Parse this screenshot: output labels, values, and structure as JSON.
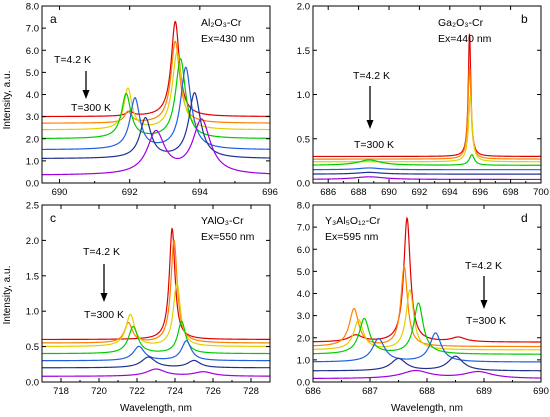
{
  "axis_labels": {
    "y": "Intensity, a.u.",
    "x": "Wavelength, nm"
  },
  "colors": {
    "series": [
      "#e00000",
      "#ff8000",
      "#e0d000",
      "#00cc00",
      "#2060e0",
      "#203090",
      "#a000e0"
    ],
    "label_high": "#e00000",
    "label_low": "#a000e0"
  },
  "chart_data": [
    {
      "type": "line",
      "panel": "a",
      "material": "Al₂O₃-Cr",
      "excitation": "Ex=430 nm",
      "label_high": "T=4.2 K",
      "label_low": "T=300 K",
      "xlim": [
        689.5,
        696
      ],
      "ylim": [
        0,
        8
      ],
      "xticks": [
        690,
        692,
        694,
        696
      ],
      "xtick_labels": [
        "690",
        "692",
        "694",
        "696"
      ],
      "yticks": [
        0,
        1,
        2,
        3,
        4,
        5,
        6,
        7,
        8
      ],
      "ytick_labels": [
        "0.0",
        "1.0",
        "2.0",
        "3.0",
        "4.0",
        "5.0",
        "6.0",
        "7.0",
        "8.0"
      ],
      "series": [
        {
          "baseline": 3.0,
          "peaks": [
            [
              692.0,
              0.2,
              0.12
            ],
            [
              693.3,
              4.3,
              0.14
            ]
          ]
        },
        {
          "baseline": 2.7,
          "peaks": [
            [
              691.95,
              0.5,
              0.12
            ],
            [
              693.3,
              3.7,
              0.15
            ]
          ]
        },
        {
          "baseline": 2.4,
          "peaks": [
            [
              691.95,
              1.85,
              0.14
            ],
            [
              693.35,
              3.5,
              0.16
            ]
          ]
        },
        {
          "baseline": 2.0,
          "peaks": [
            [
              691.9,
              2.0,
              0.16
            ],
            [
              693.45,
              3.6,
              0.17
            ]
          ]
        },
        {
          "baseline": 1.5,
          "peaks": [
            [
              692.15,
              2.3,
              0.17
            ],
            [
              693.6,
              3.7,
              0.18
            ]
          ]
        },
        {
          "baseline": 1.1,
          "peaks": [
            [
              692.45,
              1.8,
              0.19
            ],
            [
              693.85,
              2.95,
              0.2
            ]
          ]
        },
        {
          "baseline": 0.35,
          "peaks": [
            [
              692.75,
              1.9,
              0.3
            ],
            [
              694.05,
              2.45,
              0.3
            ]
          ]
        }
      ]
    },
    {
      "type": "line",
      "panel": "b",
      "material": "Ga₂O₃-Cr",
      "excitation": "Ex=440 nm",
      "label_high": "T=4.2 K",
      "label_low": "T=300 K",
      "xlim": [
        685,
        700
      ],
      "ylim": [
        0,
        2.0
      ],
      "xticks": [
        686,
        688,
        690,
        692,
        694,
        696,
        698,
        700
      ],
      "xtick_labels": [
        "686",
        "688",
        "690",
        "692",
        "694",
        "696",
        "698",
        "700"
      ],
      "yticks": [
        0,
        0.5,
        1.0,
        1.5,
        2.0
      ],
      "ytick_labels": [
        "0.0",
        "0.5",
        "1.0",
        "1.5",
        "2.0"
      ],
      "series": [
        {
          "baseline": 0.3,
          "peaks": [
            [
              695.3,
              1.4,
              0.1
            ]
          ]
        },
        {
          "baseline": 0.27,
          "peaks": [
            [
              695.3,
              1.05,
              0.12
            ]
          ]
        },
        {
          "baseline": 0.24,
          "peaks": [
            [
              695.35,
              0.75,
              0.14
            ]
          ]
        },
        {
          "baseline": 0.2,
          "peaks": [
            [
              688.7,
              0.06,
              0.9
            ],
            [
              695.45,
              0.12,
              0.2
            ]
          ]
        },
        {
          "baseline": 0.15,
          "peaks": [
            [
              688.7,
              0.02,
              0.9
            ]
          ]
        },
        {
          "baseline": 0.1,
          "peaks": [
            [
              688.7,
              0.02,
              1.0
            ]
          ]
        },
        {
          "baseline": 0.04,
          "peaks": [
            [
              688.7,
              0.03,
              1.2
            ]
          ]
        }
      ]
    },
    {
      "type": "line",
      "panel": "c",
      "material": "YAlO₃-Cr",
      "excitation": "Ex=550 nm",
      "label_high": "T=4.2 K",
      "label_low": "T=300 K",
      "xlim": [
        717,
        729
      ],
      "ylim": [
        0,
        2.5
      ],
      "xticks": [
        718,
        720,
        722,
        724,
        726,
        728
      ],
      "xtick_labels": [
        "718",
        "720",
        "722",
        "724",
        "726",
        "728"
      ],
      "yticks": [
        0,
        0.5,
        1.0,
        1.5,
        2.0,
        2.5
      ],
      "ytick_labels": [
        "0.0",
        "0.5",
        "1.0",
        "1.5",
        "2.0",
        "2.5"
      ],
      "series": [
        {
          "baseline": 0.6,
          "peaks": [
            [
              723.85,
              1.57,
              0.18
            ]
          ]
        },
        {
          "baseline": 0.55,
          "peaks": [
            [
              721.55,
              0.28,
              0.25
            ],
            [
              723.95,
              1.45,
              0.2
            ]
          ]
        },
        {
          "baseline": 0.5,
          "peaks": [
            [
              721.65,
              0.45,
              0.28
            ],
            [
              724.1,
              0.9,
              0.22
            ]
          ]
        },
        {
          "baseline": 0.4,
          "peaks": [
            [
              721.8,
              0.38,
              0.3
            ],
            [
              724.35,
              0.45,
              0.25
            ]
          ]
        },
        {
          "baseline": 0.3,
          "peaks": [
            [
              722.1,
              0.2,
              0.35
            ],
            [
              724.6,
              0.28,
              0.3
            ]
          ]
        },
        {
          "baseline": 0.2,
          "peaks": [
            [
              722.6,
              0.15,
              0.45
            ],
            [
              725.0,
              0.1,
              0.4
            ]
          ]
        },
        {
          "baseline": 0.08,
          "peaks": [
            [
              723.0,
              0.1,
              0.6
            ],
            [
              725.5,
              0.06,
              0.6
            ]
          ]
        }
      ]
    },
    {
      "type": "line",
      "panel": "d",
      "material": "Y₃Al₅O₁₂-Cr",
      "excitation": "Ex=595 nm",
      "label_high": "T=4.2 K",
      "label_low": "T=300 K",
      "xlim": [
        686,
        690
      ],
      "ylim": [
        0,
        8.0
      ],
      "xticks": [
        686,
        687,
        688,
        689,
        690
      ],
      "xtick_labels": [
        "686",
        "687",
        "688",
        "689",
        "690"
      ],
      "yticks": [
        0,
        1,
        2,
        3,
        4,
        5,
        6,
        7,
        8
      ],
      "ytick_labels": [
        "0.0",
        "1.0",
        "2.0",
        "3.0",
        "4.0",
        "5.0",
        "6.0",
        "7.0",
        "8.0"
      ],
      "series": [
        {
          "baseline": 1.8,
          "peaks": [
            [
              686.75,
              0.3,
              0.15
            ],
            [
              687.65,
              5.6,
              0.07
            ],
            [
              688.55,
              0.2,
              0.15
            ]
          ]
        },
        {
          "baseline": 1.6,
          "peaks": [
            [
              686.72,
              1.7,
              0.1
            ],
            [
              687.6,
              3.6,
              0.07
            ]
          ]
        },
        {
          "baseline": 1.45,
          "peaks": [
            [
              686.8,
              1.35,
              0.1
            ],
            [
              687.7,
              2.7,
              0.08
            ]
          ]
        },
        {
          "baseline": 1.25,
          "peaks": [
            [
              686.9,
              1.6,
              0.11
            ],
            [
              687.85,
              2.3,
              0.1
            ]
          ]
        },
        {
          "baseline": 0.9,
          "peaks": [
            [
              687.15,
              1.05,
              0.13
            ],
            [
              688.15,
              1.3,
              0.12
            ]
          ]
        },
        {
          "baseline": 0.5,
          "peaks": [
            [
              687.5,
              0.55,
              0.16
            ],
            [
              688.5,
              0.65,
              0.16
            ]
          ]
        },
        {
          "baseline": 0.15,
          "peaks": [
            [
              687.8,
              0.35,
              0.3
            ],
            [
              688.9,
              0.3,
              0.3
            ]
          ]
        }
      ]
    }
  ]
}
